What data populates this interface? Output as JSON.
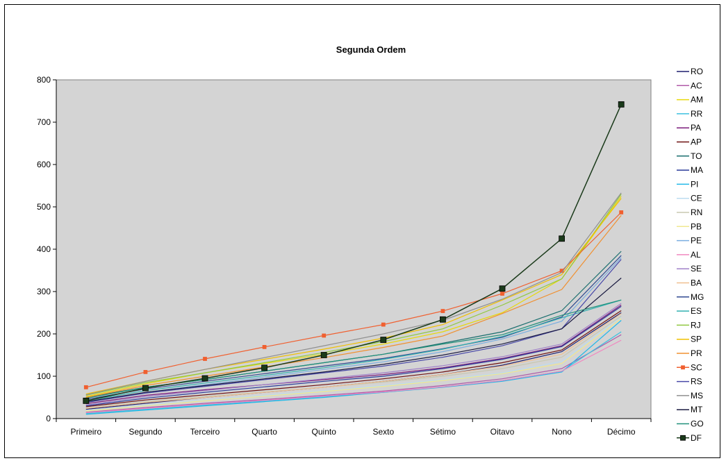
{
  "chart_data": {
    "type": "line",
    "title": "Segunda Ordem",
    "xlabel": "",
    "ylabel": "",
    "categories": [
      "Primeiro",
      "Segundo",
      "Terceiro",
      "Quarto",
      "Quinto",
      "Sexto",
      "Sétimo",
      "Oitavo",
      "Nono",
      "Décimo"
    ],
    "ylim": [
      0,
      800
    ],
    "yticks": [
      0,
      100,
      200,
      300,
      400,
      500,
      600,
      700,
      800
    ],
    "grid": false,
    "plot_background": "#d4d4d4",
    "legend_position": "right",
    "series": [
      {
        "name": "RO",
        "color": "#1f1f6e",
        "marker": "none",
        "values": [
          22,
          36,
          50,
          62,
          74,
          88,
          104,
          126,
          158,
          250
        ]
      },
      {
        "name": "AC",
        "color": "#b05aa8",
        "marker": "none",
        "values": [
          15,
          26,
          36,
          45,
          55,
          65,
          78,
          94,
          118,
          198
        ]
      },
      {
        "name": "AM",
        "color": "#e8d80a",
        "marker": "none",
        "values": [
          52,
          82,
          108,
          130,
          152,
          176,
          205,
          250,
          330,
          525
        ]
      },
      {
        "name": "RR",
        "color": "#3cc0e0",
        "marker": "none",
        "values": [
          12,
          22,
          32,
          42,
          52,
          62,
          75,
          90,
          112,
          205
        ]
      },
      {
        "name": "PA",
        "color": "#7a1a7a",
        "marker": "none",
        "values": [
          35,
          55,
          68,
          80,
          92,
          104,
          120,
          142,
          172,
          268
        ]
      },
      {
        "name": "AP",
        "color": "#6e1010",
        "marker": "none",
        "values": [
          28,
          44,
          56,
          68,
          80,
          94,
          110,
          132,
          162,
          255
        ]
      },
      {
        "name": "TO",
        "color": "#1a6e6e",
        "marker": "none",
        "values": [
          50,
          74,
          92,
          112,
          132,
          152,
          178,
          205,
          255,
          395
        ]
      },
      {
        "name": "MA",
        "color": "#2a3a9a",
        "marker": "none",
        "values": [
          30,
          48,
          62,
          75,
          88,
          100,
          118,
          140,
          170,
          265
        ]
      },
      {
        "name": "PI",
        "color": "#20b8e8",
        "marker": "none",
        "values": [
          10,
          20,
          30,
          40,
          50,
          62,
          74,
          88,
          110,
          232
        ]
      },
      {
        "name": "CE",
        "color": "#bcdcf0",
        "marker": "none",
        "values": [
          20,
          32,
          44,
          55,
          66,
          78,
          92,
          108,
          135,
          240
        ]
      },
      {
        "name": "RN",
        "color": "#c8c8b0",
        "marker": "none",
        "values": [
          25,
          40,
          52,
          63,
          74,
          86,
          100,
          118,
          145,
          242
        ]
      },
      {
        "name": "PB",
        "color": "#f0e890",
        "marker": "none",
        "values": [
          18,
          30,
          42,
          53,
          64,
          76,
          90,
          106,
          130,
          236
        ]
      },
      {
        "name": "PE",
        "color": "#7aaee0",
        "marker": "none",
        "values": [
          38,
          62,
          80,
          98,
          116,
          134,
          158,
          188,
          230,
          380
        ]
      },
      {
        "name": "AL",
        "color": "#f088c0",
        "marker": "none",
        "values": [
          14,
          24,
          34,
          43,
          53,
          63,
          75,
          90,
          112,
          185
        ]
      },
      {
        "name": "SE",
        "color": "#a080c8",
        "marker": "none",
        "values": [
          32,
          52,
          66,
          80,
          94,
          108,
          125,
          146,
          176,
          272
        ]
      },
      {
        "name": "BA",
        "color": "#f0c090",
        "marker": "none",
        "values": [
          24,
          38,
          50,
          62,
          74,
          88,
          104,
          124,
          152,
          248
        ]
      },
      {
        "name": "MG",
        "color": "#304a90",
        "marker": "none",
        "values": [
          45,
          70,
          88,
          106,
          124,
          142,
          165,
          192,
          240,
          385
        ]
      },
      {
        "name": "ES",
        "color": "#30b0b0",
        "marker": "none",
        "values": [
          42,
          66,
          84,
          102,
          120,
          140,
          164,
          194,
          238,
          280
        ]
      },
      {
        "name": "RJ",
        "color": "#90c840",
        "marker": "none",
        "values": [
          55,
          85,
          108,
          132,
          156,
          182,
          212,
          268,
          330,
          530
        ]
      },
      {
        "name": "SP",
        "color": "#f0c000",
        "marker": "none",
        "values": [
          58,
          88,
          116,
          140,
          164,
          190,
          222,
          280,
          340,
          520
        ]
      },
      {
        "name": "PR",
        "color": "#f09030",
        "marker": "none",
        "values": [
          50,
          78,
          100,
          122,
          144,
          168,
          195,
          248,
          305,
          480
        ]
      },
      {
        "name": "SC",
        "color": "#f06030",
        "marker": "square",
        "values": [
          74,
          110,
          141,
          169,
          196,
          222,
          254,
          295,
          349,
          487
        ]
      },
      {
        "name": "RS",
        "color": "#4848a8",
        "marker": "none",
        "values": [
          38,
          60,
          76,
          92,
          108,
          124,
          145,
          172,
          212,
          376
        ]
      },
      {
        "name": "MS",
        "color": "#909090",
        "marker": "none",
        "values": [
          56,
          88,
          116,
          144,
          172,
          200,
          232,
          282,
          345,
          533
        ]
      },
      {
        "name": "MT",
        "color": "#1a1a40",
        "marker": "none",
        "values": [
          40,
          62,
          78,
          94,
          110,
          128,
          150,
          176,
          212,
          332
        ]
      },
      {
        "name": "GO",
        "color": "#20907a",
        "marker": "none",
        "values": [
          48,
          74,
          92,
          112,
          132,
          152,
          176,
          198,
          244,
          280
        ]
      },
      {
        "name": "DF",
        "color": "#1a3a1a",
        "marker": "square",
        "values": [
          42,
          72,
          95,
          120,
          150,
          186,
          234,
          307,
          425,
          742
        ]
      }
    ]
  }
}
